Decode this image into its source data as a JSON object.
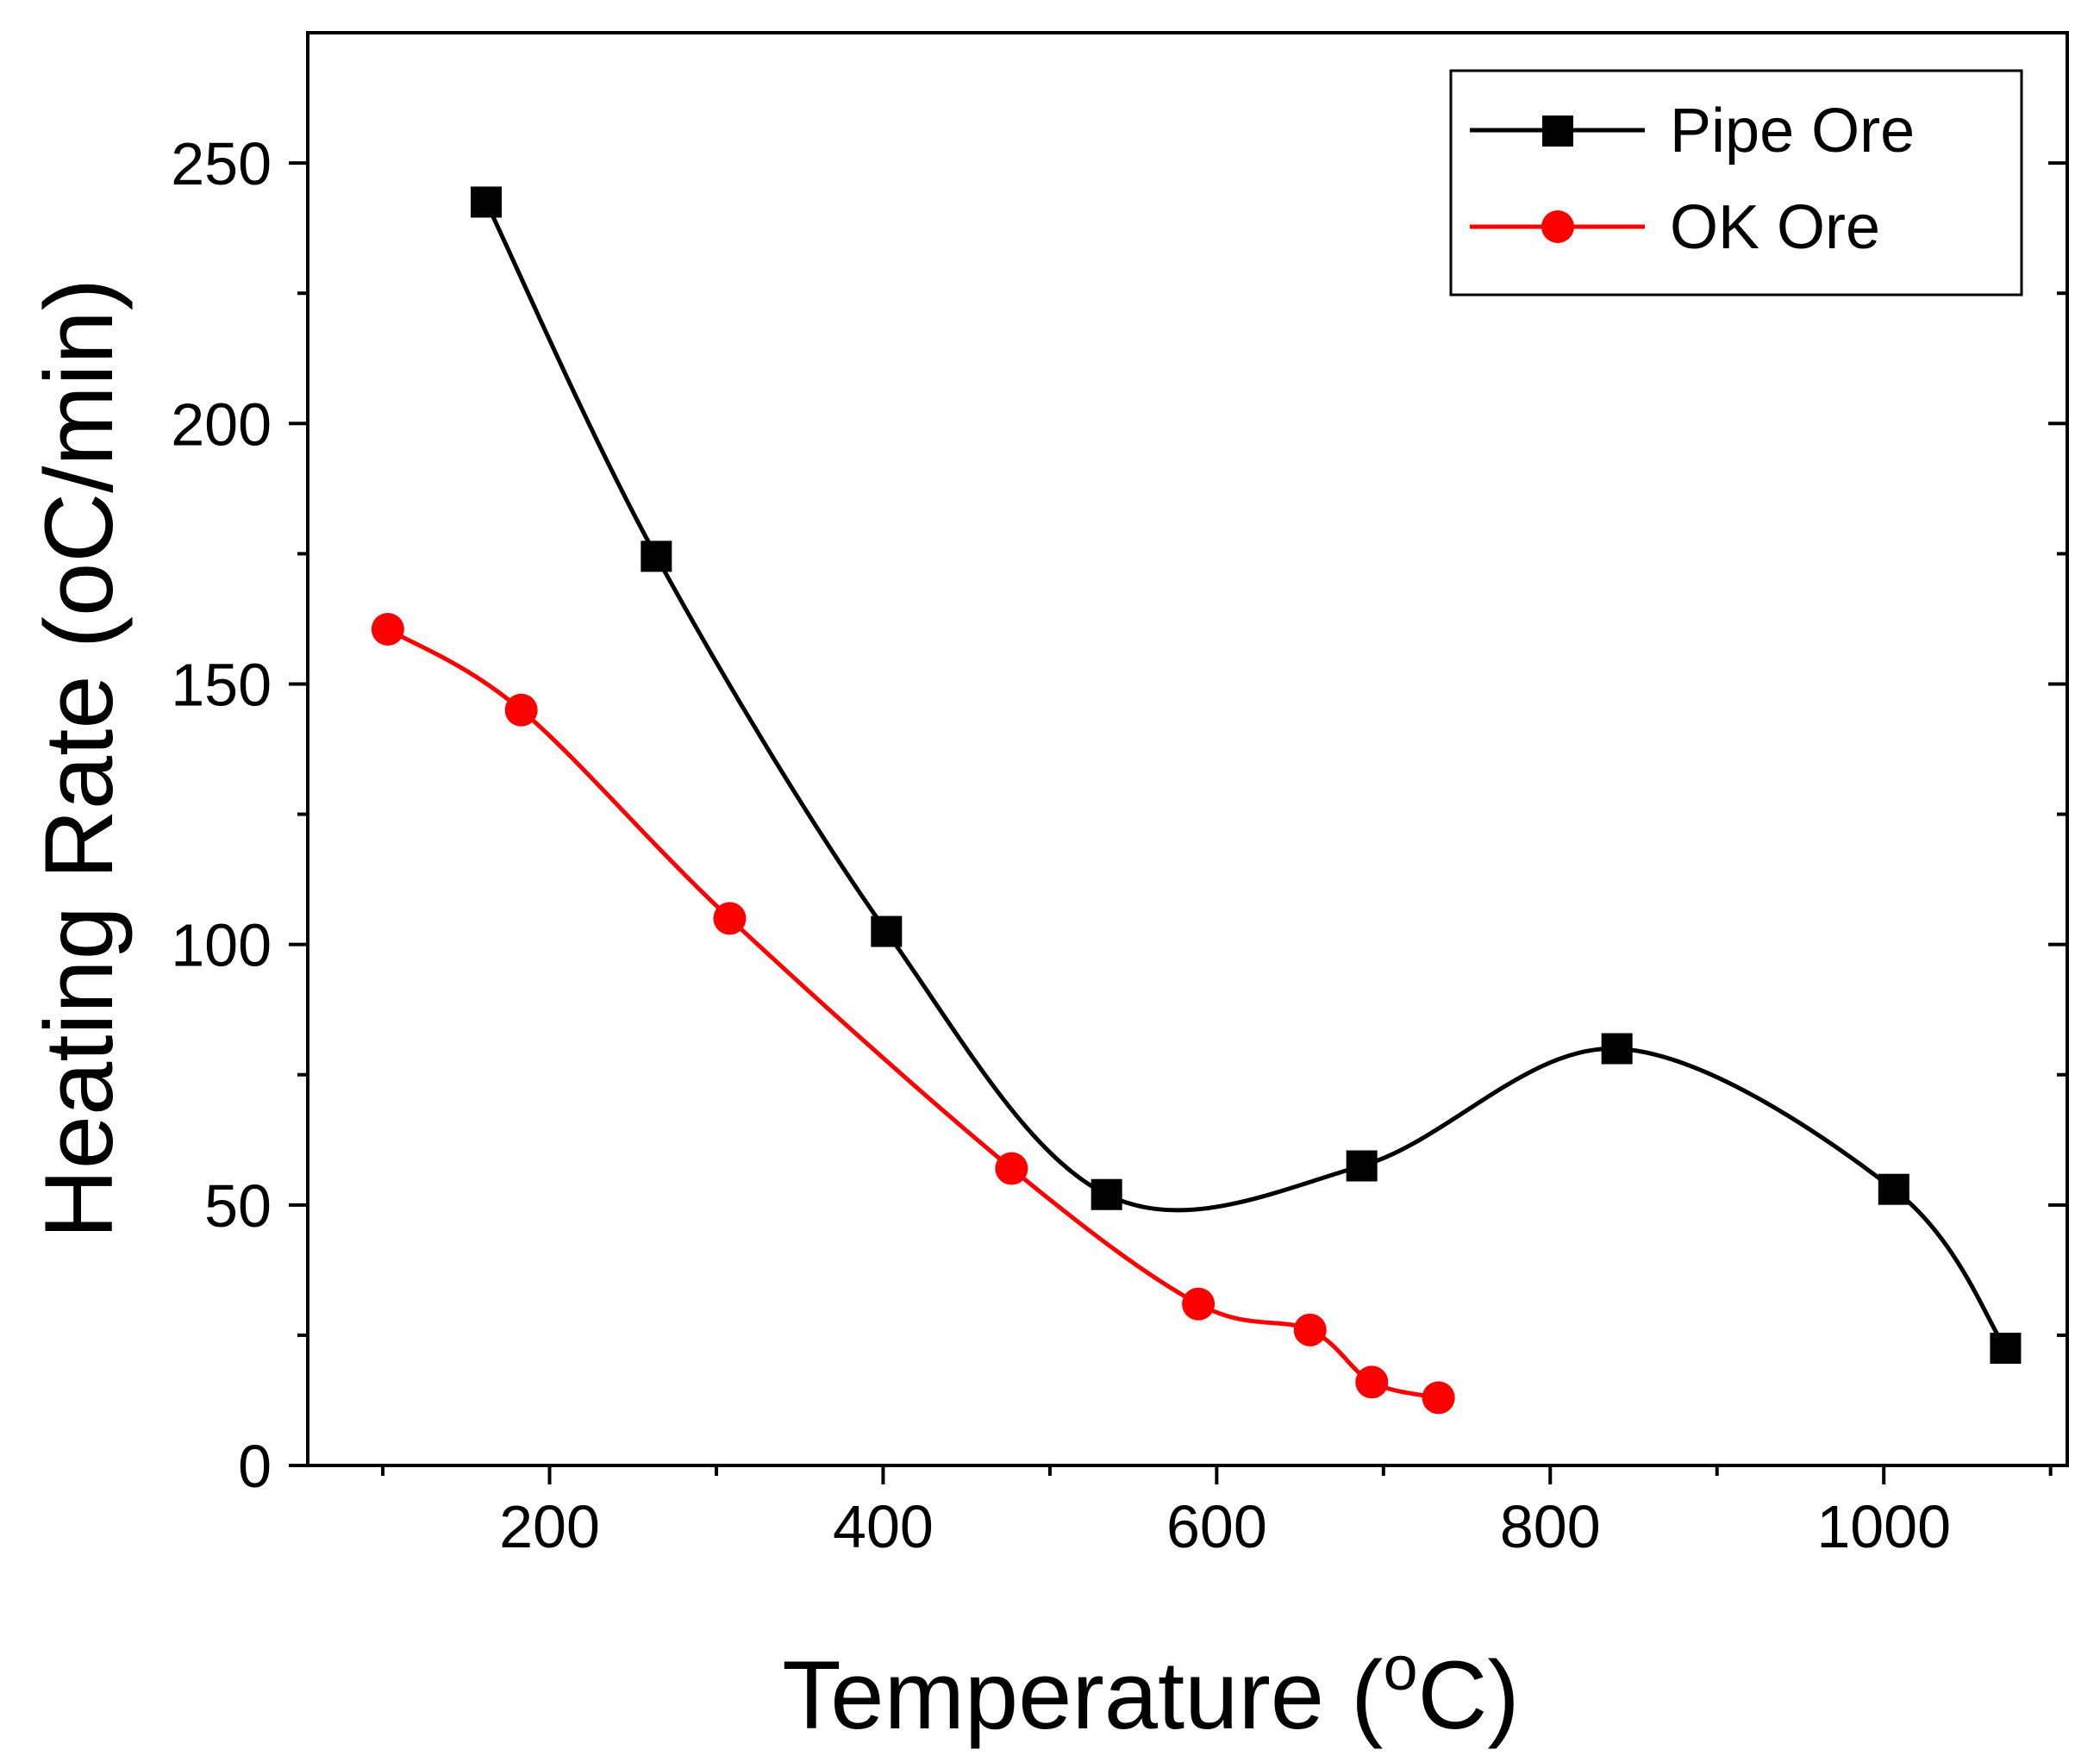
{
  "chart_data": {
    "type": "line",
    "title": "",
    "xlabel": "Temperature (",
    "xlabel_sup": "o",
    "xlabel_tail": "C)",
    "ylabel": "Heating Rate (",
    "ylabel_deg": "o",
    "ylabel_tail": "C/min)",
    "xlim": [
      55,
      1110
    ],
    "ylim": [
      0,
      275
    ],
    "xticks": [
      200,
      400,
      600,
      800,
      1000
    ],
    "xtick_labels": [
      "200",
      "400",
      "600",
      "800",
      "1000"
    ],
    "xminor": [
      100,
      300,
      500,
      700,
      900,
      1100
    ],
    "yticks": [
      0,
      50,
      100,
      150,
      200,
      250
    ],
    "ytick_labels": [
      "0",
      "50",
      "100",
      "150",
      "200",
      "250"
    ],
    "yminor": [
      25,
      75,
      125,
      175,
      225
    ],
    "legend_position": "top-right",
    "series": [
      {
        "name": "Pipe Ore",
        "color": "#000000",
        "marker": "square",
        "x": [
          162,
          264,
          402,
          534,
          687,
          840,
          1006,
          1073
        ],
        "y": [
          242.5,
          174.5,
          102.5,
          52,
          57.5,
          80,
          53,
          22.5
        ]
      },
      {
        "name": "OK Ore",
        "color": "#ff0000",
        "marker": "circle",
        "x": [
          103,
          183,
          308,
          477,
          589,
          656,
          693,
          733
        ],
        "y": [
          160.5,
          145,
          105,
          57,
          31,
          26,
          16,
          13
        ]
      }
    ]
  }
}
